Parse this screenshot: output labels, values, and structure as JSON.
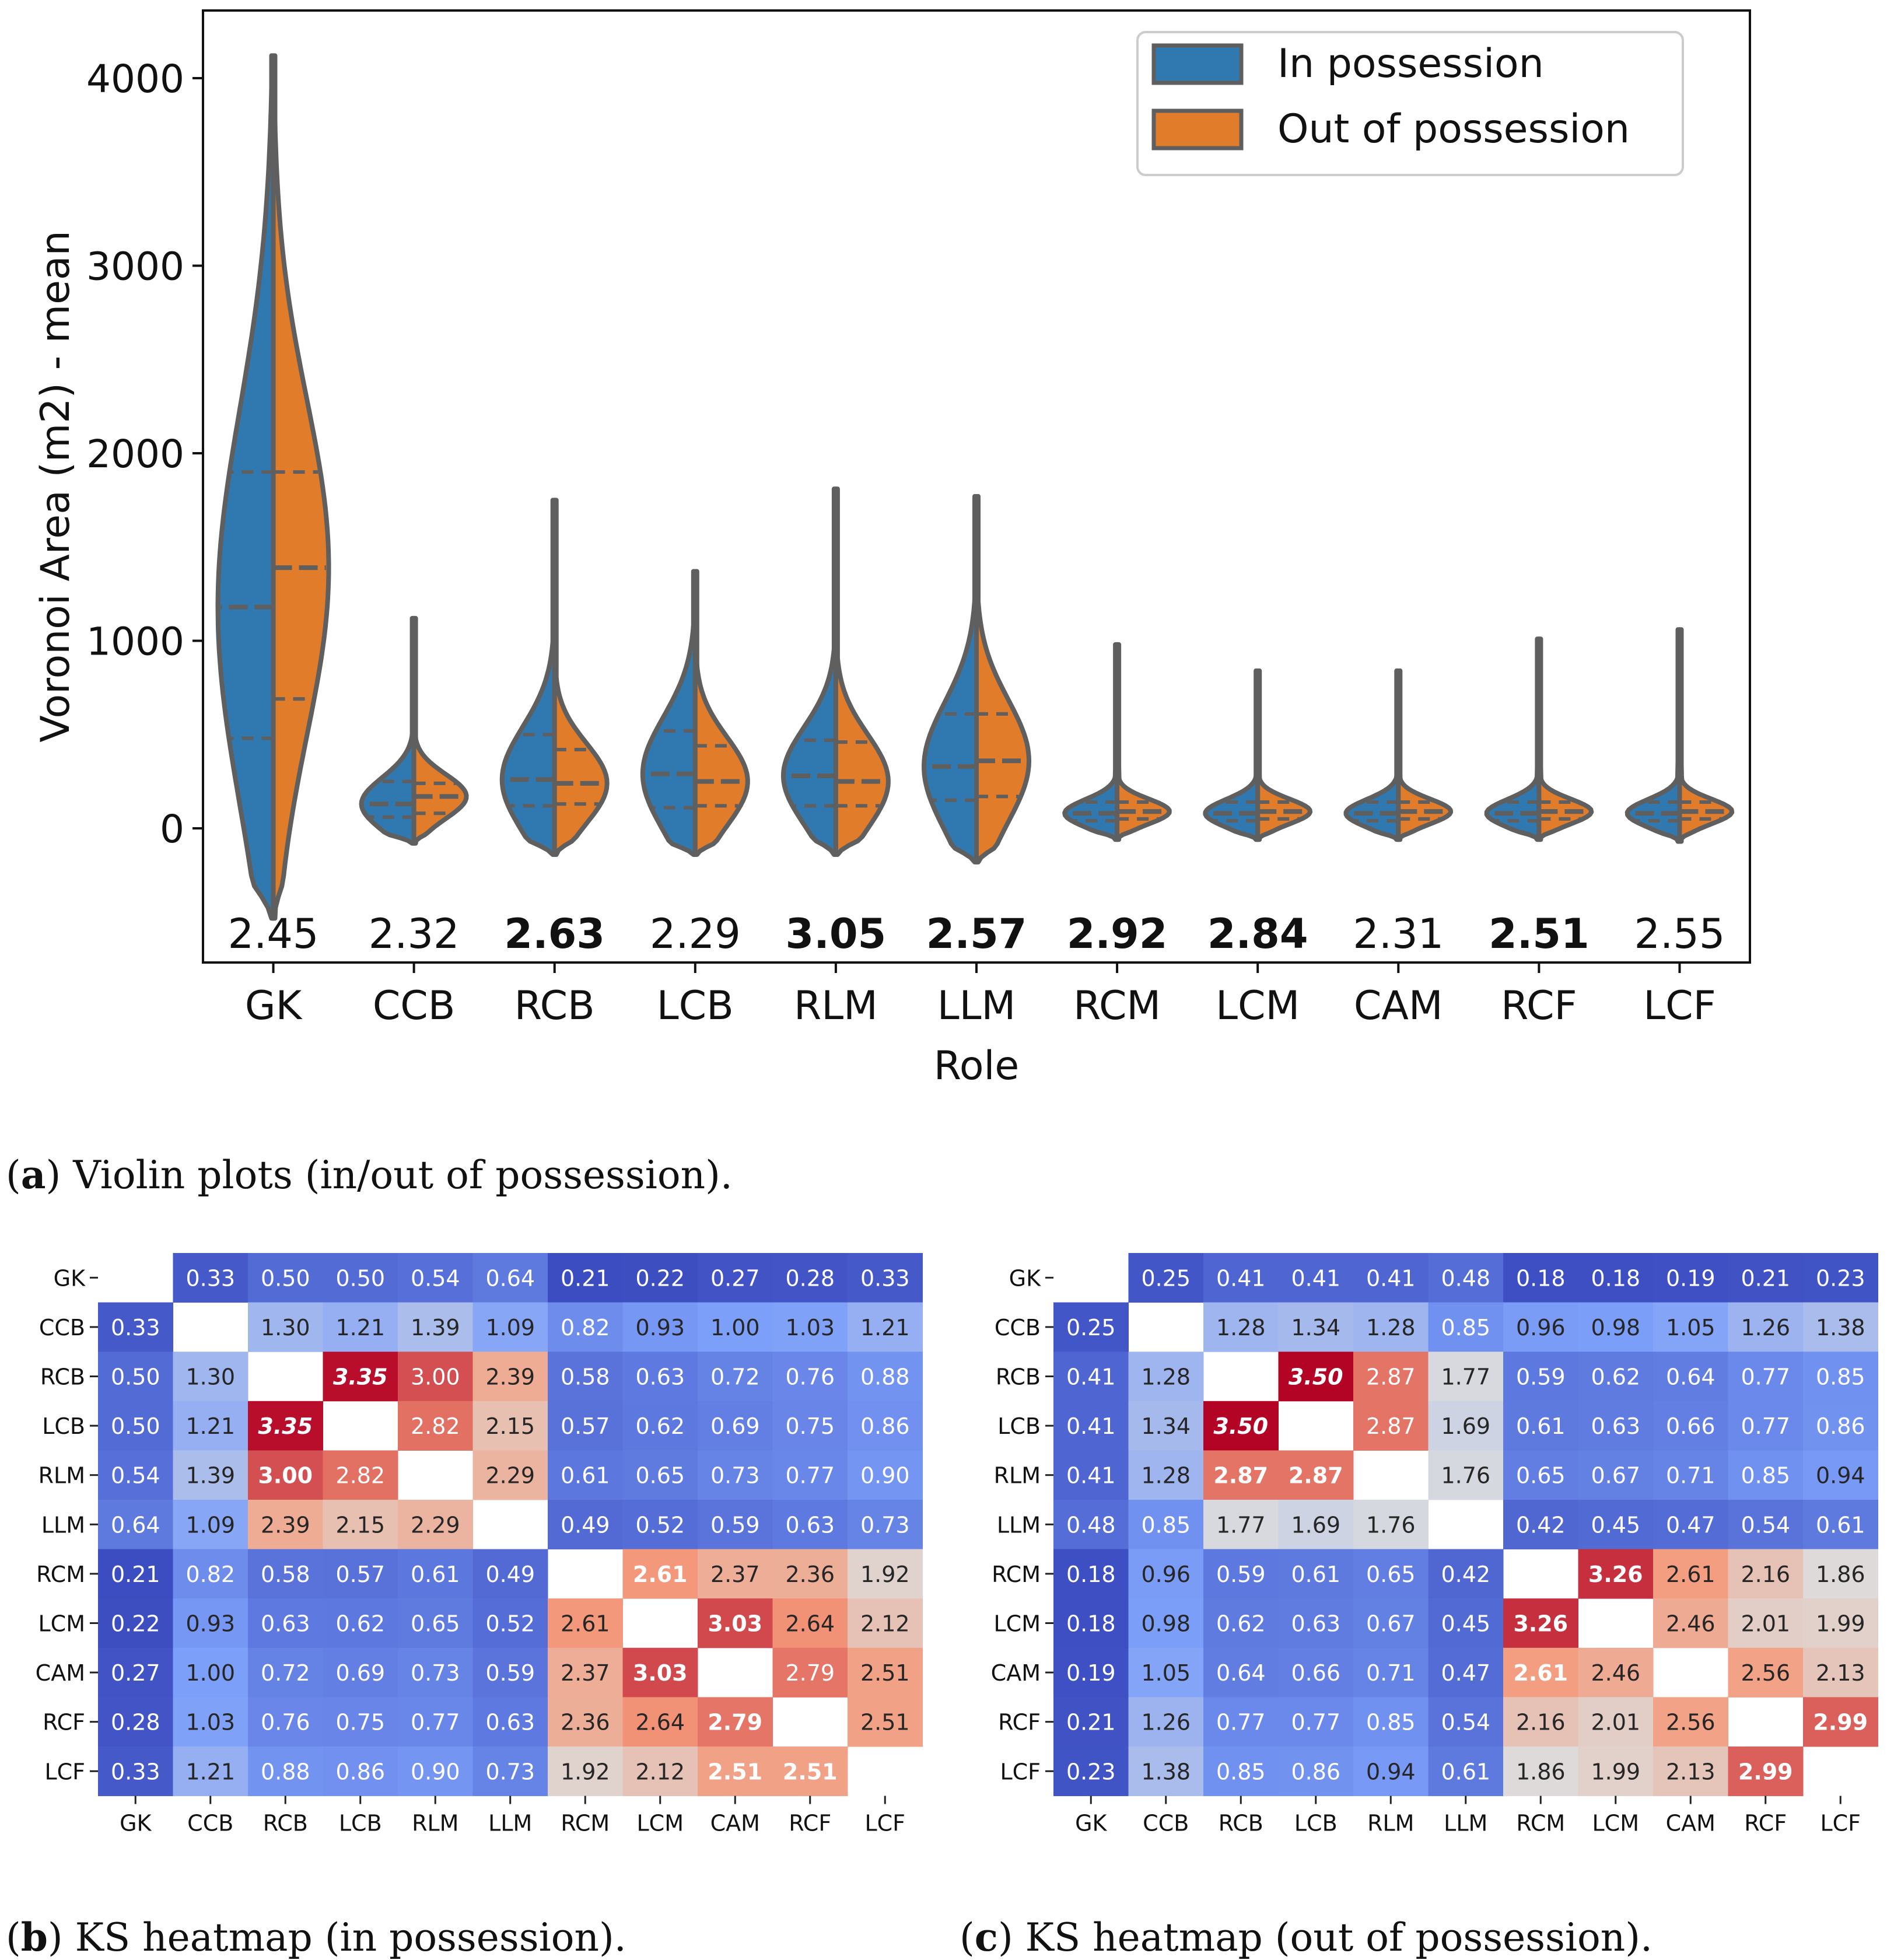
{
  "chart_data": [
    {
      "type": "violin",
      "id": "a",
      "xlabel": "Role",
      "ylabel": "Voronoi Area (m2) - mean",
      "ylim": [
        -750,
        4400
      ],
      "yticks": [
        0,
        1000,
        2000,
        3000,
        4000
      ],
      "categories": [
        "GK",
        "CCB",
        "RCB",
        "LCB",
        "RLM",
        "LLM",
        "RCM",
        "LCM",
        "CAM",
        "RCF",
        "LCF"
      ],
      "legend": {
        "position": "top-right",
        "entries": [
          {
            "label": "In possession",
            "color": "#2f79b0"
          },
          {
            "label": "Out of possession",
            "color": "#e07c2a"
          }
        ]
      },
      "ks_labels": [
        "2.45",
        "2.32",
        "2.63",
        "2.29",
        "3.05",
        "2.57",
        "2.92",
        "2.84",
        "2.31",
        "2.51",
        "2.55"
      ],
      "ks_bold": [
        false,
        false,
        true,
        false,
        true,
        true,
        true,
        true,
        false,
        true,
        false
      ],
      "series": [
        {
          "name": "In possession",
          "quartiles": [
            [
              480,
              1180,
              1900
            ],
            [
              60,
              130,
              250
            ],
            [
              120,
              260,
              500
            ],
            [
              110,
              290,
              520
            ],
            [
              120,
              280,
              470
            ],
            [
              150,
              330,
              610
            ],
            [
              40,
              80,
              140
            ],
            [
              40,
              80,
              140
            ],
            [
              40,
              80,
              140
            ],
            [
              40,
              80,
              140
            ],
            [
              40,
              80,
              140
            ]
          ]
        },
        {
          "name": "Out of possession",
          "quartiles": [
            [
              690,
              1390,
              1900
            ],
            [
              80,
              170,
              240
            ],
            [
              130,
              240,
              420
            ],
            [
              120,
              250,
              440
            ],
            [
              120,
              250,
              460
            ],
            [
              170,
              360,
              610
            ],
            [
              50,
              90,
              140
            ],
            [
              50,
              90,
              140
            ],
            [
              50,
              90,
              140
            ],
            [
              50,
              90,
              140
            ],
            [
              50,
              90,
              140
            ]
          ]
        }
      ],
      "extent": [
        [
          -480,
          4120
        ],
        [
          -80,
          1120
        ],
        [
          -140,
          1750
        ],
        [
          -140,
          1370
        ],
        [
          -140,
          1810
        ],
        [
          -180,
          1770
        ],
        [
          -60,
          980
        ],
        [
          -60,
          840
        ],
        [
          -60,
          840
        ],
        [
          -60,
          1010
        ],
        [
          -70,
          1060
        ]
      ]
    },
    {
      "type": "heatmap",
      "id": "b",
      "labels": [
        "GK",
        "CCB",
        "RCB",
        "LCB",
        "RLM",
        "LLM",
        "RCM",
        "LCM",
        "CAM",
        "RCF",
        "LCF"
      ],
      "values": [
        [
          null,
          0.33,
          0.5,
          0.5,
          0.54,
          0.64,
          0.21,
          0.22,
          0.27,
          0.28,
          0.33
        ],
        [
          0.33,
          null,
          1.3,
          1.21,
          1.39,
          1.09,
          0.82,
          0.93,
          1.0,
          1.03,
          1.21
        ],
        [
          0.5,
          1.3,
          null,
          3.35,
          3.0,
          2.39,
          0.58,
          0.63,
          0.72,
          0.76,
          0.88
        ],
        [
          0.5,
          1.21,
          3.35,
          null,
          2.82,
          2.15,
          0.57,
          0.62,
          0.69,
          0.75,
          0.86
        ],
        [
          0.54,
          1.39,
          3.0,
          2.82,
          null,
          2.29,
          0.61,
          0.65,
          0.73,
          0.77,
          0.9
        ],
        [
          0.64,
          1.09,
          2.39,
          2.15,
          2.29,
          null,
          0.49,
          0.52,
          0.59,
          0.63,
          0.73
        ],
        [
          0.21,
          0.82,
          0.58,
          0.57,
          0.61,
          0.49,
          null,
          2.61,
          2.37,
          2.36,
          1.92
        ],
        [
          0.22,
          0.93,
          0.63,
          0.62,
          0.65,
          0.52,
          2.61,
          null,
          3.03,
          2.64,
          2.12
        ],
        [
          0.27,
          1.0,
          0.72,
          0.69,
          0.73,
          0.59,
          2.37,
          3.03,
          null,
          2.79,
          2.51
        ],
        [
          0.28,
          1.03,
          0.76,
          0.75,
          0.77,
          0.63,
          2.36,
          2.64,
          2.79,
          null,
          2.51
        ],
        [
          0.33,
          1.21,
          0.88,
          0.86,
          0.9,
          0.73,
          1.92,
          2.12,
          2.51,
          2.51,
          null
        ]
      ],
      "vmin": 0.2,
      "vmax": 3.4,
      "row_span": [
        0,
        10
      ],
      "col_span": [
        1,
        10
      ]
    },
    {
      "type": "heatmap",
      "id": "c",
      "labels": [
        "GK",
        "CCB",
        "RCB",
        "LCB",
        "RLM",
        "LLM",
        "RCM",
        "LCM",
        "CAM",
        "RCF",
        "LCF"
      ],
      "values": [
        [
          null,
          0.25,
          0.41,
          0.41,
          0.41,
          0.48,
          0.18,
          0.18,
          0.19,
          0.21,
          0.23
        ],
        [
          0.25,
          null,
          1.28,
          1.34,
          1.28,
          0.85,
          0.96,
          0.98,
          1.05,
          1.26,
          1.38
        ],
        [
          0.41,
          1.28,
          null,
          3.5,
          2.87,
          1.77,
          0.59,
          0.62,
          0.64,
          0.77,
          0.85
        ],
        [
          0.41,
          1.34,
          3.5,
          null,
          2.87,
          1.69,
          0.61,
          0.63,
          0.66,
          0.77,
          0.86
        ],
        [
          0.41,
          1.28,
          2.87,
          2.87,
          null,
          1.76,
          0.65,
          0.67,
          0.71,
          0.85,
          0.94
        ],
        [
          0.48,
          0.85,
          1.77,
          1.69,
          1.76,
          null,
          0.42,
          0.45,
          0.47,
          0.54,
          0.61
        ],
        [
          0.18,
          0.96,
          0.59,
          0.61,
          0.65,
          0.42,
          null,
          3.26,
          2.61,
          2.16,
          1.86
        ],
        [
          0.18,
          0.98,
          0.62,
          0.63,
          0.67,
          0.45,
          3.26,
          null,
          2.46,
          2.01,
          1.99
        ],
        [
          0.19,
          1.05,
          0.64,
          0.66,
          0.71,
          0.47,
          2.61,
          2.46,
          null,
          2.56,
          2.13
        ],
        [
          0.21,
          1.26,
          0.77,
          0.77,
          0.85,
          0.54,
          2.16,
          2.01,
          2.56,
          null,
          2.99
        ],
        [
          0.23,
          1.38,
          0.85,
          0.86,
          0.94,
          0.61,
          1.86,
          1.99,
          2.13,
          2.99,
          null
        ]
      ],
      "vmin": 0.15,
      "vmax": 3.5,
      "row_span": [
        0,
        10
      ],
      "col_span": [
        1,
        10
      ]
    }
  ],
  "captions": {
    "a": {
      "letter": "a",
      "text": " Violin plots (in/out of possession)."
    },
    "b": {
      "letter": "b",
      "text": " KS heatmap (in possession)."
    },
    "c": {
      "letter": "c",
      "text": " KS heatmap (out of possession)."
    }
  }
}
